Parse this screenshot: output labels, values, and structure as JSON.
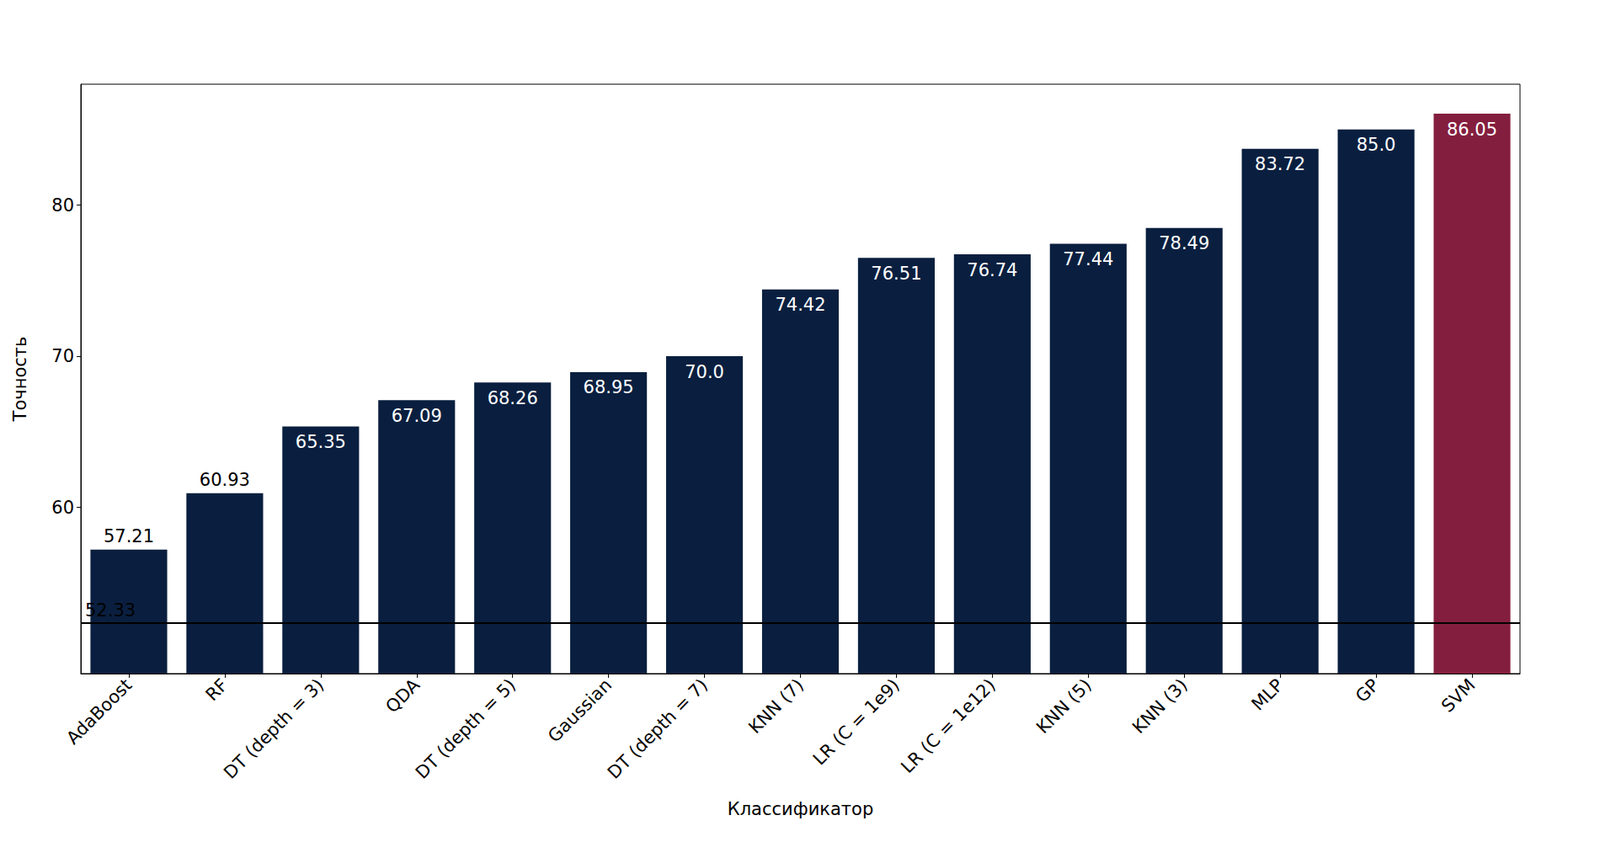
{
  "chart_data": {
    "type": "bar",
    "x_label": "Классификатор",
    "y_label": "Точность",
    "categories": [
      "AdaBoost",
      "RF",
      "DT (depth = 3)",
      "QDA",
      "DT (depth = 5)",
      "Gaussian",
      "DT (depth = 7)",
      "KNN (7)",
      "LR (C = 1e9)",
      "LR (C = 1e12)",
      "KNN (5)",
      "KNN (3)",
      "MLP",
      "GP",
      "SVM"
    ],
    "values": [
      57.21,
      60.93,
      65.35,
      67.09,
      68.26,
      68.95,
      70.0,
      74.42,
      76.51,
      76.74,
      77.44,
      78.49,
      83.72,
      85.0,
      86.05
    ],
    "value_labels": [
      "57.21",
      "60.93",
      "65.35",
      "67.09",
      "68.26",
      "68.95",
      "70.0",
      "74.42",
      "76.51",
      "76.74",
      "77.44",
      "78.49",
      "83.72",
      "85.0",
      "86.05"
    ],
    "colors": [
      "#0a1f3f",
      "#0a1f3f",
      "#0a1f3f",
      "#0a1f3f",
      "#0a1f3f",
      "#0a1f3f",
      "#0a1f3f",
      "#0a1f3f",
      "#0a1f3f",
      "#0a1f3f",
      "#0a1f3f",
      "#0a1f3f",
      "#0a1f3f",
      "#0a1f3f",
      "#841e3e"
    ],
    "reference_line": 52.33,
    "ylim": [
      49,
      88
    ],
    "yticks": [
      60,
      70,
      80
    ],
    "grid": false,
    "data_labels": true
  }
}
